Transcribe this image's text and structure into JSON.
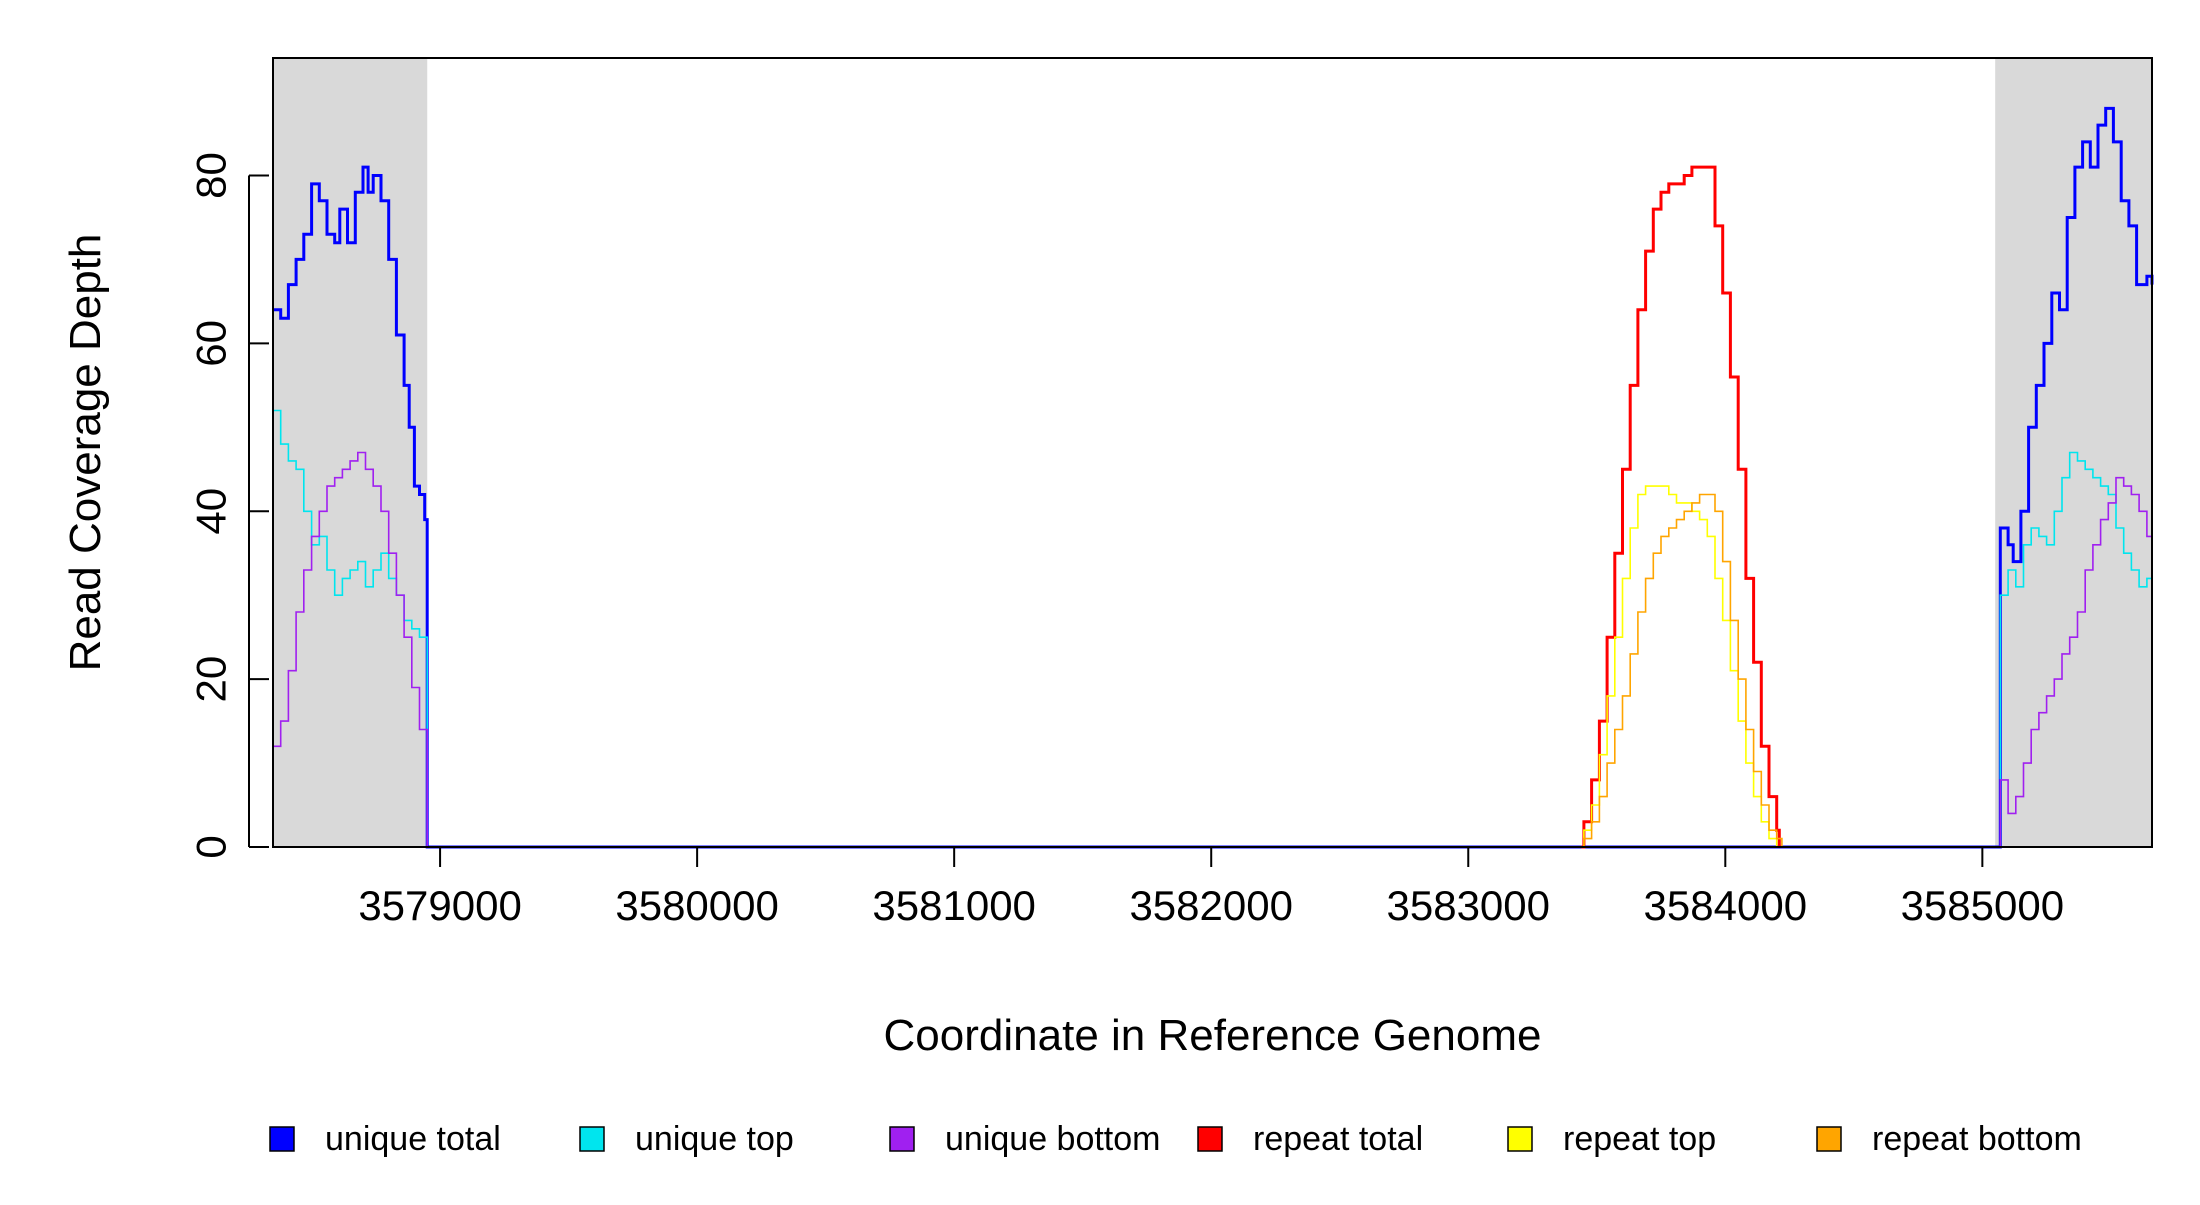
{
  "chart_data": {
    "type": "line",
    "title": "",
    "xlabel": "Coordinate in Reference Genome",
    "ylabel": "Read Coverage Depth",
    "xlim": [
      3578350,
      3585660
    ],
    "ylim": [
      0,
      94
    ],
    "x_ticks": [
      3579000,
      3580000,
      3581000,
      3582000,
      3583000,
      3584000,
      3585000
    ],
    "y_ticks": [
      0,
      20,
      40,
      60,
      80
    ],
    "shaded_regions": [
      [
        3578350,
        3578950
      ],
      [
        3585050,
        3585660
      ]
    ],
    "shade_color": "#d9d9d9",
    "legend_position": "bottom",
    "series": [
      {
        "name": "unique total",
        "color": "#0000ff",
        "width": 3,
        "points": [
          [
            3578350,
            64
          ],
          [
            3578380,
            63
          ],
          [
            3578410,
            67
          ],
          [
            3578440,
            70
          ],
          [
            3578470,
            73
          ],
          [
            3578500,
            79
          ],
          [
            3578530,
            77
          ],
          [
            3578560,
            73
          ],
          [
            3578590,
            72
          ],
          [
            3578610,
            76
          ],
          [
            3578640,
            72
          ],
          [
            3578670,
            78
          ],
          [
            3578700,
            81
          ],
          [
            3578720,
            78
          ],
          [
            3578740,
            80
          ],
          [
            3578770,
            77
          ],
          [
            3578800,
            70
          ],
          [
            3578830,
            61
          ],
          [
            3578860,
            55
          ],
          [
            3578880,
            50
          ],
          [
            3578900,
            43
          ],
          [
            3578920,
            42
          ],
          [
            3578940,
            39
          ],
          [
            3578950,
            0
          ],
          [
            3585060,
            0
          ],
          [
            3585070,
            38
          ],
          [
            3585100,
            36
          ],
          [
            3585120,
            34
          ],
          [
            3585150,
            40
          ],
          [
            3585180,
            50
          ],
          [
            3585210,
            55
          ],
          [
            3585240,
            60
          ],
          [
            3585270,
            66
          ],
          [
            3585300,
            64
          ],
          [
            3585330,
            75
          ],
          [
            3585360,
            81
          ],
          [
            3585390,
            84
          ],
          [
            3585420,
            81
          ],
          [
            3585450,
            86
          ],
          [
            3585480,
            88
          ],
          [
            3585510,
            84
          ],
          [
            3585540,
            77
          ],
          [
            3585570,
            74
          ],
          [
            3585600,
            67
          ],
          [
            3585640,
            68
          ],
          [
            3585660,
            67
          ]
        ]
      },
      {
        "name": "unique top",
        "color": "#00e5ee",
        "width": 1.6,
        "points": [
          [
            3578350,
            52
          ],
          [
            3578380,
            48
          ],
          [
            3578410,
            46
          ],
          [
            3578440,
            45
          ],
          [
            3578470,
            40
          ],
          [
            3578500,
            36
          ],
          [
            3578530,
            37
          ],
          [
            3578560,
            33
          ],
          [
            3578590,
            30
          ],
          [
            3578620,
            32
          ],
          [
            3578650,
            33
          ],
          [
            3578680,
            34
          ],
          [
            3578710,
            31
          ],
          [
            3578740,
            33
          ],
          [
            3578770,
            35
          ],
          [
            3578800,
            32
          ],
          [
            3578830,
            30
          ],
          [
            3578860,
            27
          ],
          [
            3578890,
            26
          ],
          [
            3578920,
            25
          ],
          [
            3578950,
            0
          ],
          [
            3585060,
            0
          ],
          [
            3585070,
            30
          ],
          [
            3585100,
            33
          ],
          [
            3585130,
            31
          ],
          [
            3585160,
            36
          ],
          [
            3585190,
            38
          ],
          [
            3585220,
            37
          ],
          [
            3585250,
            36
          ],
          [
            3585280,
            40
          ],
          [
            3585310,
            44
          ],
          [
            3585340,
            47
          ],
          [
            3585370,
            46
          ],
          [
            3585400,
            45
          ],
          [
            3585430,
            44
          ],
          [
            3585460,
            43
          ],
          [
            3585490,
            42
          ],
          [
            3585520,
            38
          ],
          [
            3585550,
            35
          ],
          [
            3585580,
            33
          ],
          [
            3585610,
            31
          ],
          [
            3585640,
            32
          ],
          [
            3585660,
            32
          ]
        ]
      },
      {
        "name": "unique bottom",
        "color": "#a020f0",
        "width": 1.6,
        "points": [
          [
            3578350,
            12
          ],
          [
            3578380,
            15
          ],
          [
            3578410,
            21
          ],
          [
            3578440,
            28
          ],
          [
            3578470,
            33
          ],
          [
            3578500,
            37
          ],
          [
            3578530,
            40
          ],
          [
            3578560,
            43
          ],
          [
            3578590,
            44
          ],
          [
            3578620,
            45
          ],
          [
            3578650,
            46
          ],
          [
            3578680,
            47
          ],
          [
            3578710,
            45
          ],
          [
            3578740,
            43
          ],
          [
            3578770,
            40
          ],
          [
            3578800,
            35
          ],
          [
            3578830,
            30
          ],
          [
            3578860,
            25
          ],
          [
            3578890,
            19
          ],
          [
            3578920,
            14
          ],
          [
            3578950,
            0
          ],
          [
            3585060,
            0
          ],
          [
            3585070,
            8
          ],
          [
            3585100,
            4
          ],
          [
            3585130,
            6
          ],
          [
            3585160,
            10
          ],
          [
            3585190,
            14
          ],
          [
            3585220,
            16
          ],
          [
            3585250,
            18
          ],
          [
            3585280,
            20
          ],
          [
            3585310,
            23
          ],
          [
            3585340,
            25
          ],
          [
            3585370,
            28
          ],
          [
            3585400,
            33
          ],
          [
            3585430,
            36
          ],
          [
            3585460,
            39
          ],
          [
            3585490,
            41
          ],
          [
            3585520,
            44
          ],
          [
            3585550,
            43
          ],
          [
            3585580,
            42
          ],
          [
            3585610,
            40
          ],
          [
            3585640,
            37
          ],
          [
            3585660,
            36
          ]
        ]
      },
      {
        "name": "repeat total",
        "color": "#ff0000",
        "width": 3,
        "points": [
          [
            3583440,
            0
          ],
          [
            3583450,
            3
          ],
          [
            3583480,
            8
          ],
          [
            3583510,
            15
          ],
          [
            3583540,
            25
          ],
          [
            3583570,
            35
          ],
          [
            3583600,
            45
          ],
          [
            3583630,
            55
          ],
          [
            3583660,
            64
          ],
          [
            3583690,
            71
          ],
          [
            3583720,
            76
          ],
          [
            3583750,
            78
          ],
          [
            3583780,
            79
          ],
          [
            3583810,
            79
          ],
          [
            3583840,
            80
          ],
          [
            3583870,
            81
          ],
          [
            3583900,
            81
          ],
          [
            3583930,
            81
          ],
          [
            3583960,
            74
          ],
          [
            3583990,
            66
          ],
          [
            3584020,
            56
          ],
          [
            3584050,
            45
          ],
          [
            3584080,
            32
          ],
          [
            3584110,
            22
          ],
          [
            3584140,
            12
          ],
          [
            3584170,
            6
          ],
          [
            3584200,
            2
          ],
          [
            3584210,
            0
          ]
        ]
      },
      {
        "name": "repeat top",
        "color": "#ffff00",
        "width": 1.6,
        "points": [
          [
            3583440,
            0
          ],
          [
            3583450,
            2
          ],
          [
            3583480,
            5
          ],
          [
            3583510,
            11
          ],
          [
            3583540,
            18
          ],
          [
            3583570,
            25
          ],
          [
            3583600,
            32
          ],
          [
            3583630,
            38
          ],
          [
            3583660,
            42
          ],
          [
            3583690,
            43
          ],
          [
            3583720,
            43
          ],
          [
            3583750,
            43
          ],
          [
            3583780,
            42
          ],
          [
            3583810,
            41
          ],
          [
            3583840,
            41
          ],
          [
            3583870,
            40
          ],
          [
            3583900,
            39
          ],
          [
            3583930,
            37
          ],
          [
            3583960,
            32
          ],
          [
            3583990,
            27
          ],
          [
            3584020,
            21
          ],
          [
            3584050,
            15
          ],
          [
            3584080,
            10
          ],
          [
            3584110,
            6
          ],
          [
            3584140,
            3
          ],
          [
            3584170,
            1
          ],
          [
            3584200,
            0
          ]
        ]
      },
      {
        "name": "repeat bottom",
        "color": "#ffa500",
        "width": 1.6,
        "points": [
          [
            3578350,
            0
          ],
          [
            3583440,
            0
          ],
          [
            3583450,
            1
          ],
          [
            3583480,
            3
          ],
          [
            3583510,
            6
          ],
          [
            3583540,
            10
          ],
          [
            3583570,
            14
          ],
          [
            3583600,
            18
          ],
          [
            3583630,
            23
          ],
          [
            3583660,
            28
          ],
          [
            3583690,
            32
          ],
          [
            3583720,
            35
          ],
          [
            3583750,
            37
          ],
          [
            3583780,
            38
          ],
          [
            3583810,
            39
          ],
          [
            3583840,
            40
          ],
          [
            3583870,
            41
          ],
          [
            3583900,
            42
          ],
          [
            3583930,
            42
          ],
          [
            3583960,
            40
          ],
          [
            3583990,
            34
          ],
          [
            3584020,
            27
          ],
          [
            3584050,
            20
          ],
          [
            3584080,
            14
          ],
          [
            3584110,
            9
          ],
          [
            3584140,
            5
          ],
          [
            3584170,
            2
          ],
          [
            3584200,
            1
          ],
          [
            3584220,
            0
          ],
          [
            3585660,
            0
          ]
        ]
      }
    ]
  },
  "legend_items": [
    {
      "label": "unique total",
      "color": "#0000ff"
    },
    {
      "label": "unique top",
      "color": "#00e5ee"
    },
    {
      "label": "unique bottom",
      "color": "#a020f0"
    },
    {
      "label": "repeat total",
      "color": "#ff0000"
    },
    {
      "label": "repeat top",
      "color": "#ffff00"
    },
    {
      "label": "repeat bottom",
      "color": "#ffa500"
    }
  ]
}
